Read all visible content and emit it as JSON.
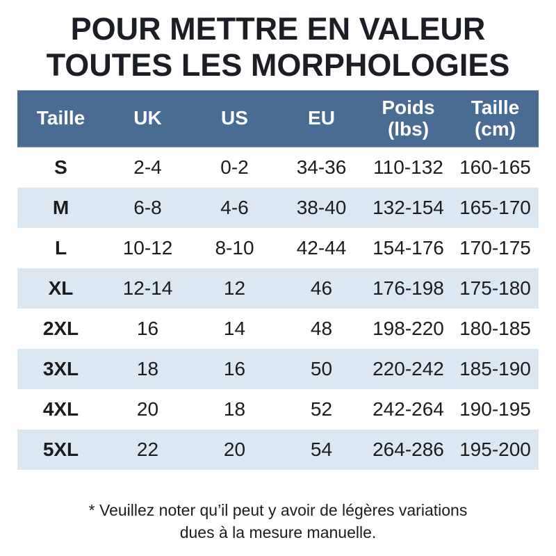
{
  "page": {
    "title_line1": "POUR METTRE EN VALEUR",
    "title_line2": "TOUTES LES MORPHOLOGIES",
    "footnote_line1": "* Veuillez noter qu’il peut y avoir de légères variations",
    "footnote_line2": "dues à la mesure manuelle."
  },
  "table": {
    "header_display": [
      "Taille",
      "UK",
      "US",
      "EU",
      "Poids\n(lbs)",
      "Taille\n(cm)"
    ]
  },
  "chart_data": {
    "type": "table",
    "title": "POUR METTRE EN VALEUR TOUTES LES MORPHOLOGIES",
    "columns": [
      "Taille",
      "UK",
      "US",
      "EU",
      "Poids (lbs)",
      "Taille (cm)"
    ],
    "rows": [
      [
        "S",
        "2-4",
        "0-2",
        "34-36",
        "110-132",
        "160-165"
      ],
      [
        "M",
        "6-8",
        "4-6",
        "38-40",
        "132-154",
        "165-170"
      ],
      [
        "L",
        "10-12",
        "8-10",
        "42-44",
        "154-176",
        "170-175"
      ],
      [
        "XL",
        "12-14",
        "12",
        "46",
        "176-198",
        "175-180"
      ],
      [
        "2XL",
        "16",
        "14",
        "48",
        "198-220",
        "180-185"
      ],
      [
        "3XL",
        "18",
        "16",
        "50",
        "220-242",
        "185-190"
      ],
      [
        "4XL",
        "20",
        "18",
        "52",
        "242-264",
        "190-195"
      ],
      [
        "5XL",
        "22",
        "20",
        "54",
        "264-286",
        "195-200"
      ]
    ],
    "footnote": "* Veuillez noter qu’il peut y avoir de légères variations dues à la mesure manuelle.",
    "layout_hints": {
      "header_style": "solid fill, white bold text",
      "row_striping": "odd rows white, even rows light blue"
    }
  },
  "colors": {
    "header_bg": "#4a6b92",
    "header_text": "#ffffff",
    "row_bg": "#ffffff",
    "row_alt_bg": "#dbe8f2",
    "title_text": "#1b1e24",
    "body_text": "#1c1c1e"
  }
}
